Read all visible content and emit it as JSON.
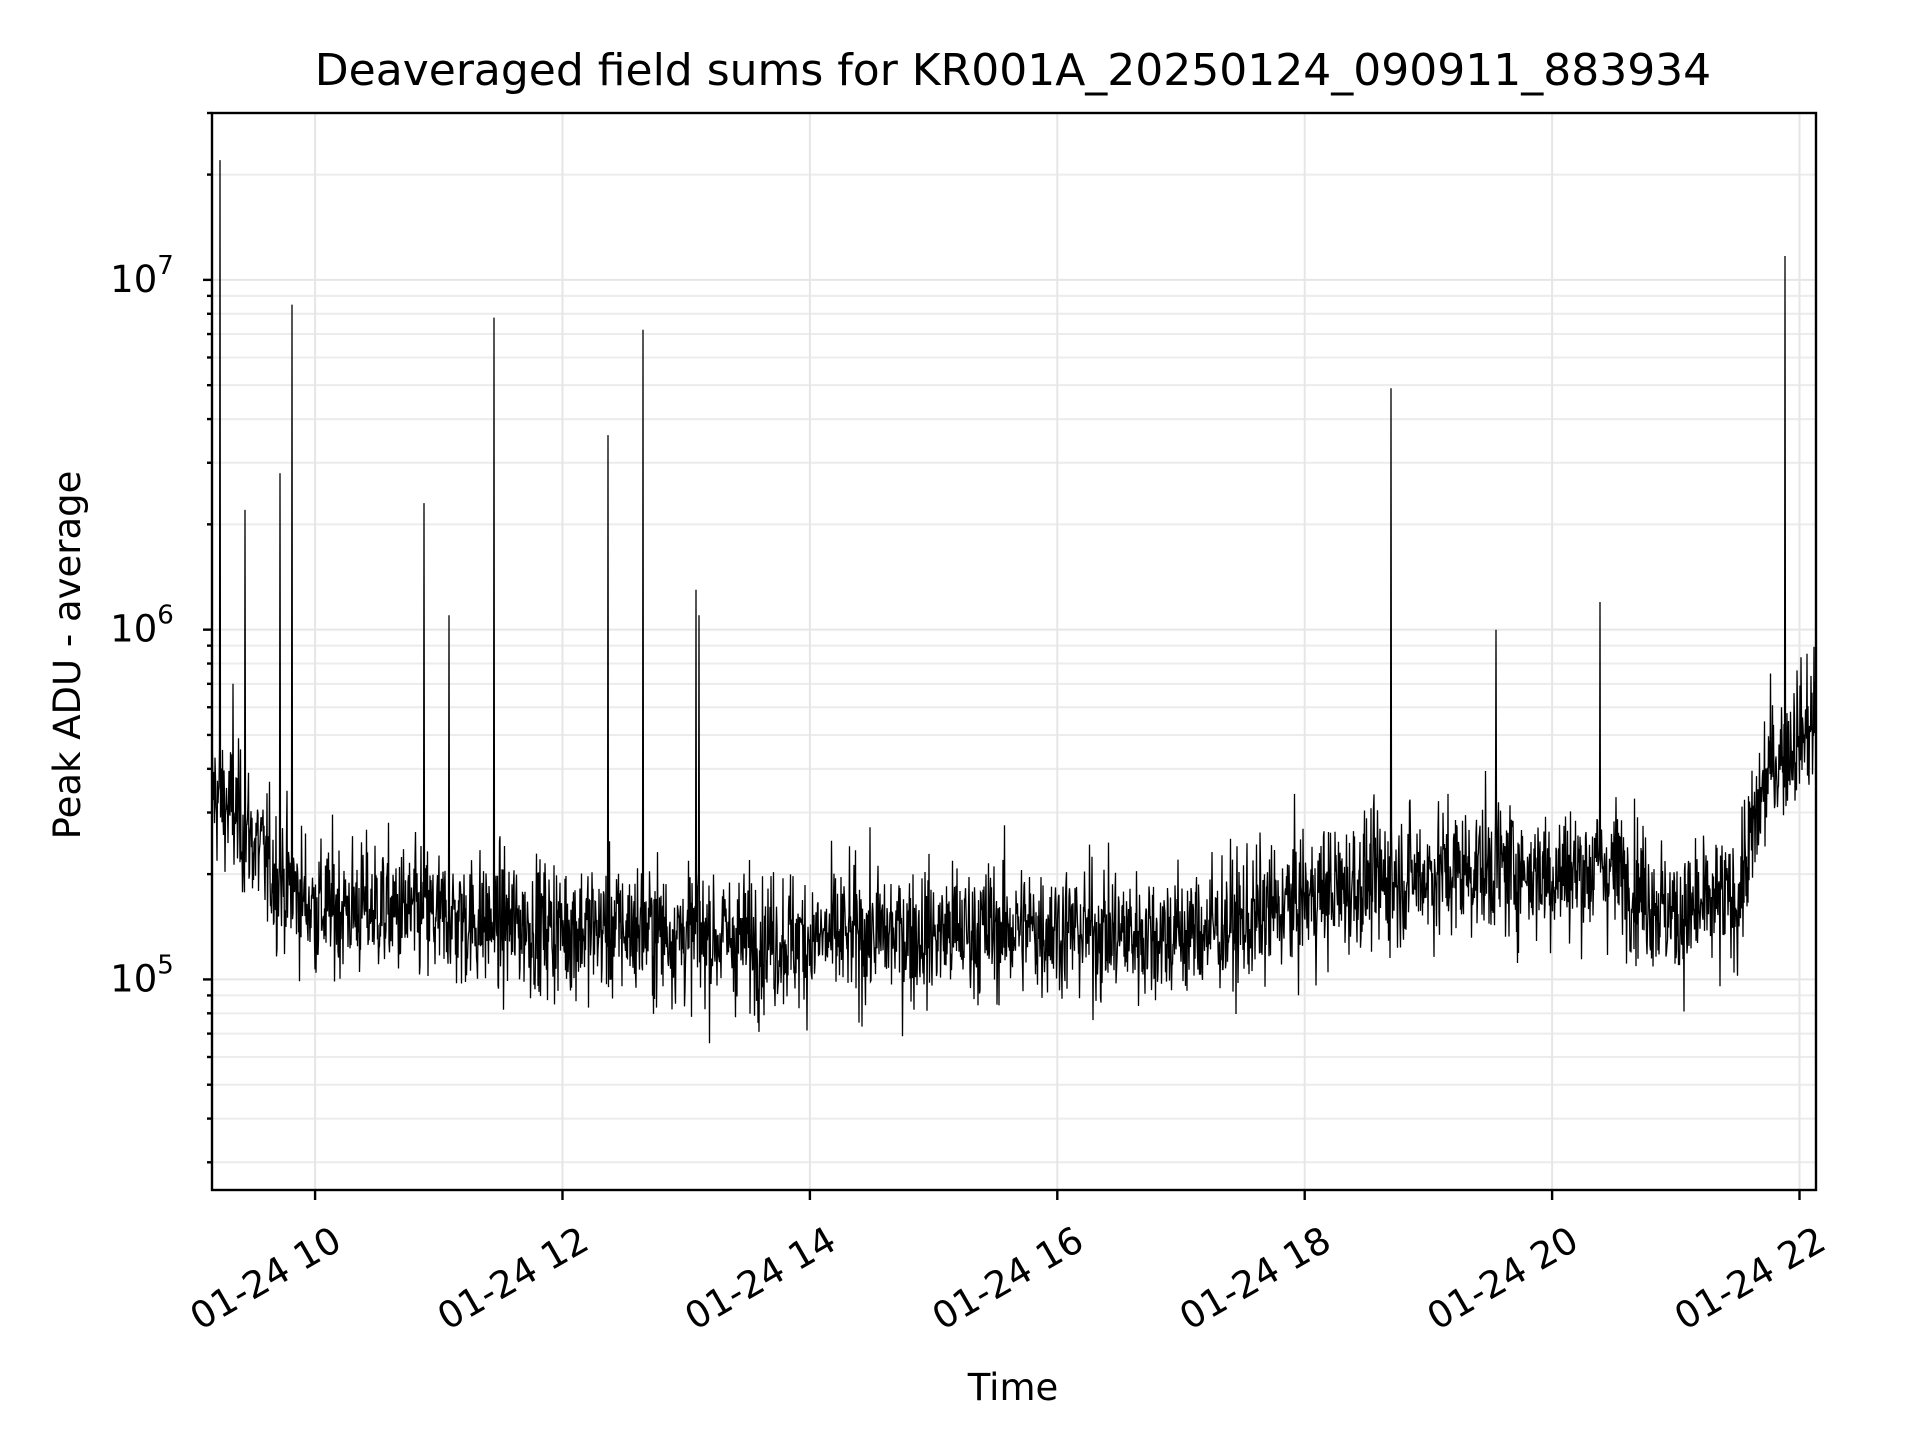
{
  "chart_data": {
    "type": "line",
    "title": "Deaveraged field sums for KR001A_20250124_090911_883934",
    "xlabel": "Time",
    "ylabel": "Peak ADU - average",
    "x_scale": "time",
    "y_scale": "log",
    "xlim": [
      "2025-01-24T09:10",
      "2025-01-24T22:08"
    ],
    "ylim": [
      25000,
      30000000
    ],
    "grid": true,
    "x_ticks": [
      "01-24 10",
      "01-24 12",
      "01-24 14",
      "01-24 16",
      "01-24 18",
      "01-24 20",
      "01-24 22"
    ],
    "y_ticks": [
      {
        "base": "10",
        "exp": "5"
      },
      {
        "base": "10",
        "exp": "6"
      },
      {
        "base": "10",
        "exp": "7"
      }
    ],
    "color": "#000000",
    "series": [
      {
        "x": [
          "2025-01-24T09:10",
          "2025-01-24T09:20",
          "2025-01-24T09:30",
          "2025-01-24T09:40",
          "2025-01-24T09:50",
          "2025-01-24T10:00",
          "2025-01-24T10:30",
          "2025-01-24T11:00",
          "2025-01-24T11:30",
          "2025-01-24T12:00",
          "2025-01-24T12:30",
          "2025-01-24T13:00",
          "2025-01-24T13:30",
          "2025-01-24T14:00",
          "2025-01-24T14:30",
          "2025-01-24T15:00",
          "2025-01-24T15:30",
          "2025-01-24T16:00",
          "2025-01-24T16:30",
          "2025-01-24T17:00",
          "2025-01-24T17:30",
          "2025-01-24T18:00",
          "2025-01-24T18:30",
          "2025-01-24T19:00",
          "2025-01-24T19:30",
          "2025-01-24T20:00",
          "2025-01-24T20:30",
          "2025-01-24T21:00",
          "2025-01-24T21:30",
          "2025-01-24T21:45",
          "2025-01-24T22:00",
          "2025-01-24T22:08"
        ],
        "values": [
          350000,
          300000,
          250000,
          200000,
          180000,
          160000,
          160000,
          150000,
          145000,
          140000,
          140000,
          135000,
          130000,
          130000,
          135000,
          135000,
          140000,
          140000,
          135000,
          135000,
          145000,
          170000,
          190000,
          200000,
          210000,
          200000,
          210000,
          150000,
          170000,
          400000,
          500000,
          550000
        ],
        "spread_factor": 1.5
      }
    ],
    "spikes": [
      {
        "x": "2025-01-24T09:14",
        "y": 22000000
      },
      {
        "x": "2025-01-24T09:20",
        "y": 700000
      },
      {
        "x": "2025-01-24T09:26",
        "y": 2200000
      },
      {
        "x": "2025-01-24T09:43",
        "y": 2800000
      },
      {
        "x": "2025-01-24T09:49",
        "y": 8500000
      },
      {
        "x": "2025-01-24T10:53",
        "y": 2300000
      },
      {
        "x": "2025-01-24T11:05",
        "y": 1100000
      },
      {
        "x": "2025-01-24T11:27",
        "y": 7800000
      },
      {
        "x": "2025-01-24T12:22",
        "y": 3600000
      },
      {
        "x": "2025-01-24T12:39",
        "y": 7200000
      },
      {
        "x": "2025-01-24T13:05",
        "y": 1300000
      },
      {
        "x": "2025-01-24T13:06",
        "y": 1100000
      },
      {
        "x": "2025-01-24T18:42",
        "y": 4900000
      },
      {
        "x": "2025-01-24T19:33",
        "y": 1000000
      },
      {
        "x": "2025-01-24T20:23",
        "y": 1200000
      },
      {
        "x": "2025-01-24T21:53",
        "y": 11700000
      }
    ]
  }
}
